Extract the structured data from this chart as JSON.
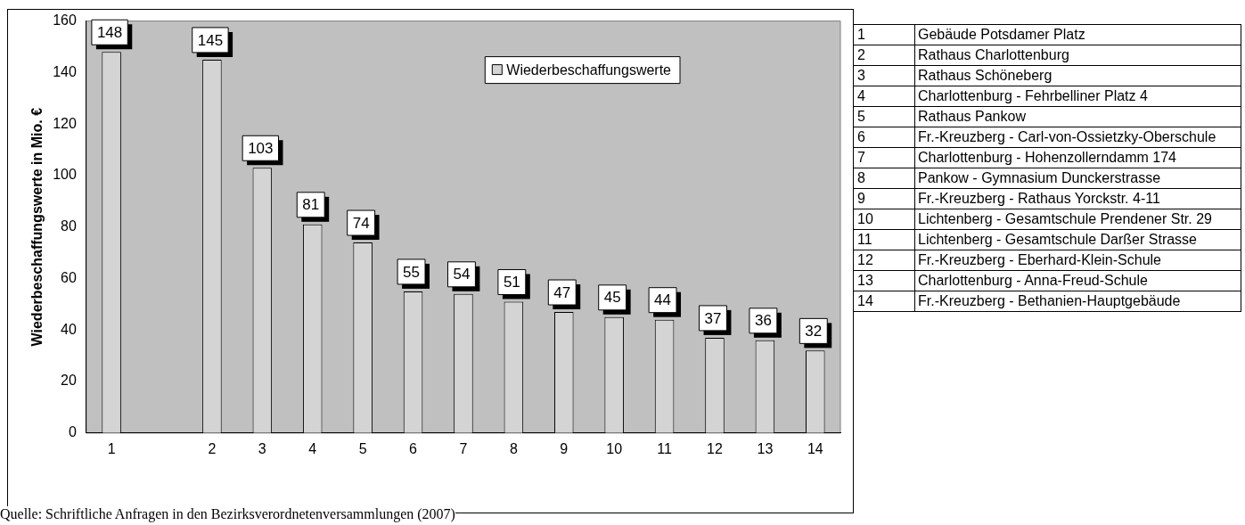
{
  "chart_data": {
    "type": "bar",
    "ylabel": "Wiederbeschaffungswerte in Mio. €",
    "categories": [
      "1",
      null,
      "2",
      "3",
      "4",
      "5",
      "6",
      "7",
      "8",
      "9",
      "10",
      "11",
      "12",
      "13",
      "14"
    ],
    "series": [
      {
        "name": "Wiederbeschaffungswerte",
        "color": "#d4d4d4",
        "values": [
          148,
          null,
          145,
          103,
          81,
          74,
          55,
          54,
          51,
          47,
          45,
          44,
          37,
          36,
          32
        ]
      }
    ],
    "ylim": [
      0,
      160
    ],
    "yticks": [
      0,
      20,
      40,
      60,
      80,
      100,
      120,
      140,
      160
    ],
    "grid": false,
    "legend": "top right",
    "data_labels": true,
    "annotations": [
      "Quelle: Schriftliche Anfragen in den Bezirksverordnetenversammlungen (2007)",
      "1\tGebäude Potsdamer Platz",
      "2\tRathaus Charlottenburg",
      "3\tRathaus Schöneberg",
      "4\tCharlottenburg - Fehrbelliner Platz 4",
      "5\tRathaus Pankow",
      "6\tFr.-Kreuzberg - Carl-von-Ossietzky-Oberschule",
      "7\tCharlottenburg - Hohenzollerndamm 174",
      "8\tPankow - Gymnasium Dunckerstrasse",
      "9\tFr.-Kreuzberg - Rathaus Yorckstr. 4-11",
      "10\tLichtenberg - Gesamtschule Prendener Str. 29",
      "11\tLichtenberg - Gesamtschule Darßer Strasse",
      "12\tFr.-Kreuzberg - Eberhard-Klein-Schule",
      "13\tCharlottenburg - Anna-Freud-Schule",
      "14\tFr.-Kreuzberg - Bethanien-Hauptgebäude"
    ]
  }
}
